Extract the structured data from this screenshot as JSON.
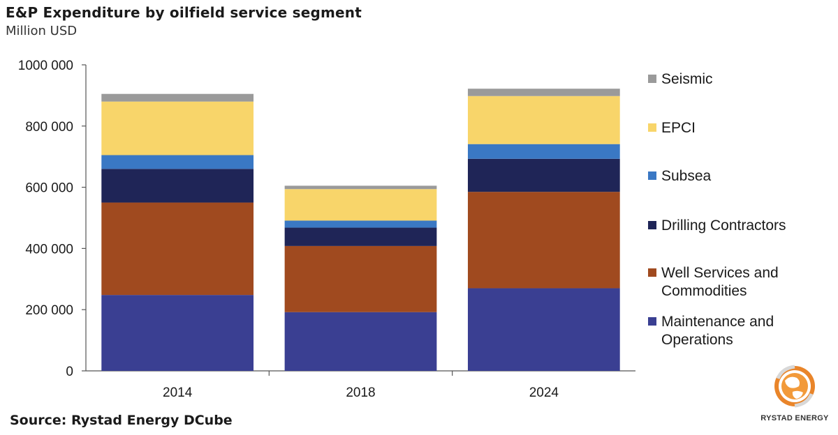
{
  "chart_data": {
    "type": "bar",
    "stacked": true,
    "title": "E&P Expenditure by oilfield service segment",
    "subtitle": "Million USD",
    "categories": [
      "2014",
      "2018",
      "2024"
    ],
    "ylim": [
      0,
      1000000
    ],
    "yticks": [
      0,
      200000,
      400000,
      600000,
      800000,
      1000000
    ],
    "ytick_labels": [
      "0",
      "200 000",
      "400 000",
      "600 000",
      "800 000",
      "1000 000"
    ],
    "grid": false,
    "legend_position": "right",
    "series": [
      {
        "name": "Maintenance and Operations",
        "color": "#3a3f92",
        "values": [
          248000,
          192000,
          270000
        ]
      },
      {
        "name": "Well Services and Commodities",
        "color": "#a04a1f",
        "values": [
          302000,
          216000,
          315000
        ]
      },
      {
        "name": "Drilling Contractors",
        "color": "#1f2557",
        "values": [
          110000,
          60000,
          108000
        ]
      },
      {
        "name": "Subsea",
        "color": "#3a78c4",
        "values": [
          45000,
          23000,
          48000
        ]
      },
      {
        "name": "EPCI",
        "color": "#f8d56a",
        "values": [
          175000,
          103000,
          157000
        ]
      },
      {
        "name": "Seismic",
        "color": "#9a9a9a",
        "values": [
          25000,
          11000,
          24000
        ]
      }
    ]
  },
  "source": "Source: Rystad Energy DCube",
  "brand": {
    "name": "RYSTAD ENERGY",
    "logo_icon": "globe-logo-icon"
  }
}
